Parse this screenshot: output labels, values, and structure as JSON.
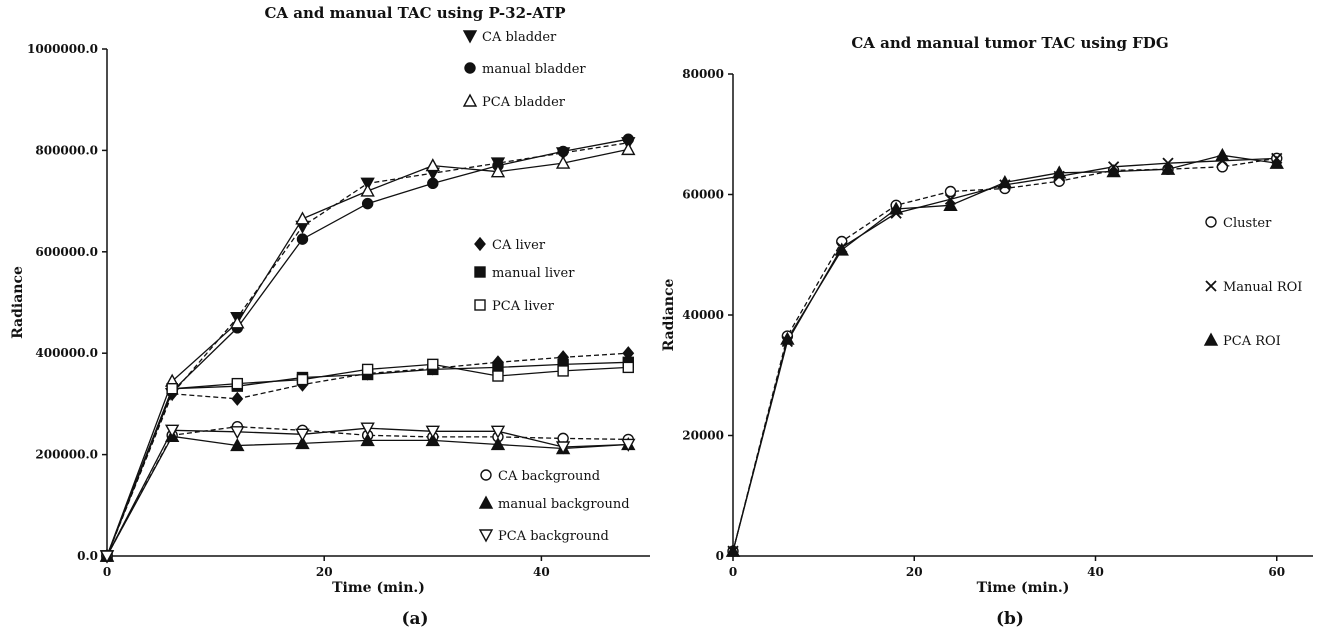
{
  "chart_data": [
    {
      "type": "line",
      "title": "CA and manual TAC using P-32-ATP",
      "xlabel": "Time (min.)",
      "ylabel": "Radiance",
      "panel_label": "(a)",
      "xlim": [
        0,
        50
      ],
      "ylim": [
        0,
        1000000
      ],
      "x_ticks": [
        0,
        20,
        40
      ],
      "x_tick_labels": [
        "0",
        "20",
        "40"
      ],
      "y_ticks": [
        0,
        200000,
        400000,
        600000,
        800000,
        1000000
      ],
      "y_tick_labels": [
        "0.0",
        "200000.0",
        "400000.0",
        "600000.0",
        "800000.0",
        "1000000.0"
      ],
      "legend_position": "right",
      "x": [
        0,
        6,
        12,
        18,
        24,
        30,
        36,
        42,
        48
      ],
      "series": [
        {
          "name": "CA bladder",
          "marker": "triangle-down-filled",
          "dashed": true,
          "values": [
            0,
            320000,
            470000,
            650000,
            735000,
            755000,
            775000,
            795000,
            815000
          ]
        },
        {
          "name": "manual bladder",
          "marker": "circle-filled",
          "dashed": false,
          "values": [
            0,
            325000,
            450000,
            625000,
            695000,
            735000,
            770000,
            798000,
            822000
          ]
        },
        {
          "name": "PCA bladder",
          "marker": "triangle-up-open",
          "dashed": false,
          "values": [
            0,
            345000,
            460000,
            665000,
            720000,
            770000,
            758000,
            775000,
            802000
          ]
        },
        {
          "name": "CA liver",
          "marker": "diamond-filled",
          "dashed": true,
          "values": [
            0,
            320000,
            310000,
            338000,
            360000,
            370000,
            382000,
            392000,
            400000
          ]
        },
        {
          "name": "manual liver",
          "marker": "square-filled",
          "dashed": false,
          "values": [
            0,
            330000,
            335000,
            352000,
            358000,
            368000,
            372000,
            378000,
            382000
          ]
        },
        {
          "name": "PCA liver",
          "marker": "square-open",
          "dashed": false,
          "values": [
            0,
            330000,
            340000,
            348000,
            368000,
            378000,
            355000,
            365000,
            372000
          ]
        },
        {
          "name": "CA background",
          "marker": "circle-open",
          "dashed": true,
          "values": [
            0,
            238000,
            255000,
            248000,
            238000,
            235000,
            235000,
            232000,
            230000
          ]
        },
        {
          "name": "manual background",
          "marker": "triangle-up-filled",
          "dashed": false,
          "values": [
            0,
            236000,
            218000,
            222000,
            228000,
            228000,
            220000,
            212000,
            220000
          ]
        },
        {
          "name": "PCA background",
          "marker": "triangle-down-open",
          "dashed": false,
          "values": [
            0,
            248000,
            245000,
            240000,
            252000,
            246000,
            246000,
            215000,
            220000
          ]
        }
      ]
    },
    {
      "type": "line",
      "title": "CA and manual tumor TAC using FDG",
      "xlabel": "Time (min.)",
      "ylabel": "Radiance",
      "panel_label": "(b)",
      "xlim": [
        0,
        64
      ],
      "ylim": [
        0,
        80000
      ],
      "x_ticks": [
        0,
        20,
        40,
        60
      ],
      "x_tick_labels": [
        "0",
        "20",
        "40",
        "60"
      ],
      "y_ticks": [
        0,
        20000,
        40000,
        60000,
        80000
      ],
      "y_tick_labels": [
        "0",
        "20000",
        "40000",
        "60000",
        "80000"
      ],
      "legend_position": "right",
      "x": [
        0,
        6,
        12,
        18,
        24,
        30,
        36,
        42,
        48,
        54,
        60
      ],
      "series": [
        {
          "name": "Cluster",
          "marker": "circle-open",
          "dashed": true,
          "values": [
            800,
            36500,
            52200,
            58200,
            60500,
            61000,
            62200,
            64000,
            64200,
            64600,
            66000
          ]
        },
        {
          "name": "Manual ROI",
          "marker": "cross",
          "dashed": false,
          "values": [
            800,
            35600,
            51200,
            56900,
            59200,
            61600,
            63000,
            64600,
            65200,
            65600,
            66000
          ]
        },
        {
          "name": "PCA ROI",
          "marker": "triangle-up-filled",
          "dashed": false,
          "values": [
            800,
            36000,
            50800,
            57600,
            58200,
            62000,
            63600,
            63800,
            64200,
            66500,
            65200
          ]
        }
      ]
    }
  ]
}
